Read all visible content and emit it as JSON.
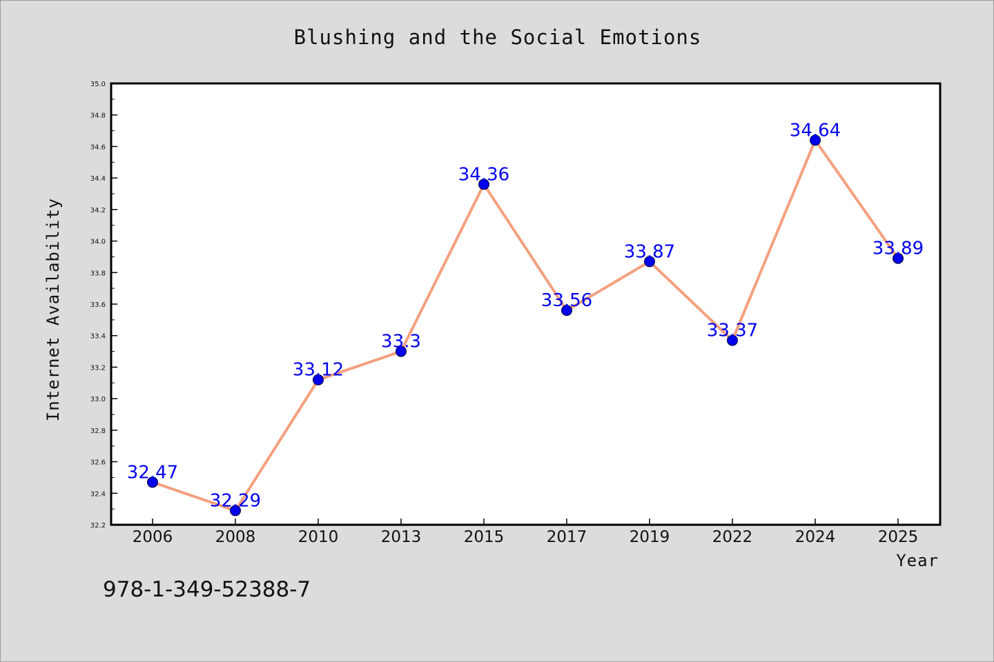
{
  "chart_data": {
    "type": "line",
    "title": "Blushing and the Social Emotions",
    "xlabel": "Year",
    "ylabel": "Internet Availability",
    "categories": [
      "2006",
      "2008",
      "2010",
      "2013",
      "2015",
      "2017",
      "2019",
      "2022",
      "2024",
      "2025"
    ],
    "series": [
      {
        "values": [
          32.47,
          32.29,
          33.12,
          33.3,
          34.36,
          33.56,
          33.87,
          33.37,
          34.64,
          33.89
        ],
        "data_labels": [
          "32.47",
          "32.29",
          "33.12",
          "33.3",
          "34.36",
          "33.56",
          "33.87",
          "33.37",
          "34.64",
          "33.89"
        ]
      }
    ],
    "ylim": [
      32.2,
      35.0
    ],
    "y_ticks": [
      "32.2",
      "32.4",
      "32.6",
      "32.8",
      "33.0",
      "33.2",
      "33.4",
      "33.6",
      "33.8",
      "34.0",
      "34.2",
      "34.4",
      "34.6",
      "34.8",
      "35.0"
    ],
    "grid": false,
    "legend": "none",
    "colors": {
      "line": "#f4a07e",
      "marker": "#0000ee",
      "data_label": "#0000ee",
      "plot_background": "#ffffff",
      "page_background": "#dcdcdc"
    }
  },
  "footer_code": "978-1-349-52388-7"
}
